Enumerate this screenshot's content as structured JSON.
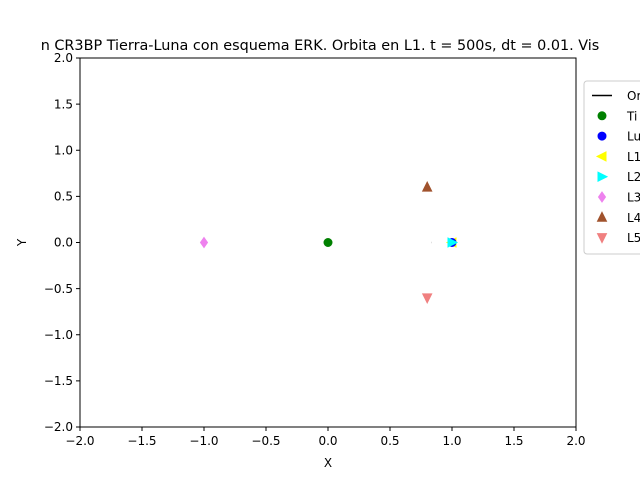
{
  "chart_data": {
    "type": "scatter",
    "title": "n CR3BP Tierra-Luna con esquema ERK. Orbita en L1. t = 500s, dt = 0.01. Vis",
    "xlabel": "X",
    "ylabel": "Y",
    "xlim": [
      -2.0,
      2.0
    ],
    "ylim": [
      -2.0,
      2.0
    ],
    "xticks": [
      -2.0,
      -1.5,
      -1.0,
      -0.5,
      0.0,
      0.5,
      1.0,
      1.5,
      2.0
    ],
    "yticks": [
      -2.0,
      -1.5,
      -1.0,
      -0.5,
      0.0,
      0.5,
      1.0,
      1.5,
      2.0
    ],
    "xtick_labels": [
      "−2.0",
      "−1.5",
      "−1.0",
      "−0.5",
      "0.0",
      "0.5",
      "1.0",
      "1.5",
      "2.0"
    ],
    "ytick_labels": [
      "−2.0",
      "−1.5",
      "−1.0",
      "−0.5",
      "0.0",
      "0.5",
      "1.0",
      "1.5",
      "2.0"
    ],
    "grid": false,
    "legend_position": "upper-right-outside",
    "legend": [
      {
        "label": "Or",
        "marker": "line",
        "color": "#000000"
      },
      {
        "label": "Ti",
        "marker": "circle",
        "color": "#008000"
      },
      {
        "label": "Lu",
        "marker": "circle",
        "color": "#0000ff"
      },
      {
        "label": "L1",
        "marker": "triangle-left",
        "color": "#ffff00"
      },
      {
        "label": "L2",
        "marker": "triangle-right",
        "color": "#00ffff"
      },
      {
        "label": "L3",
        "marker": "diamond",
        "color": "#ee82ee"
      },
      {
        "label": "L4",
        "marker": "triangle-up",
        "color": "#a0522d"
      },
      {
        "label": "L5",
        "marker": "triangle-down",
        "color": "#f08080"
      }
    ],
    "series": [
      {
        "name": "Or",
        "marker": "line",
        "color": "#000000",
        "points": [
          [
            0.837,
            0.0
          ],
          [
            0.838,
            0.0
          ]
        ]
      },
      {
        "name": "Ti",
        "marker": "circle",
        "color": "#008000",
        "points": [
          [
            0.0,
            0.0
          ]
        ]
      },
      {
        "name": "L3",
        "marker": "diamond",
        "color": "#ee82ee",
        "points": [
          [
            -1.0,
            0.0
          ]
        ]
      },
      {
        "name": "L4",
        "marker": "triangle-up",
        "color": "#a0522d",
        "points": [
          [
            0.8,
            0.6
          ]
        ]
      },
      {
        "name": "L5",
        "marker": "triangle-down",
        "color": "#f08080",
        "points": [
          [
            0.8,
            -0.6
          ]
        ]
      },
      {
        "name": "L1",
        "marker": "triangle-left",
        "color": "#ffff00",
        "points": [
          [
            1.0,
            0.0
          ]
        ]
      },
      {
        "name": "Lu",
        "marker": "circle",
        "color": "#0000ff",
        "points": [
          [
            1.0,
            0.0
          ]
        ]
      },
      {
        "name": "L2",
        "marker": "triangle-right",
        "color": "#00ffff",
        "points": [
          [
            1.0,
            0.0
          ]
        ]
      }
    ]
  }
}
